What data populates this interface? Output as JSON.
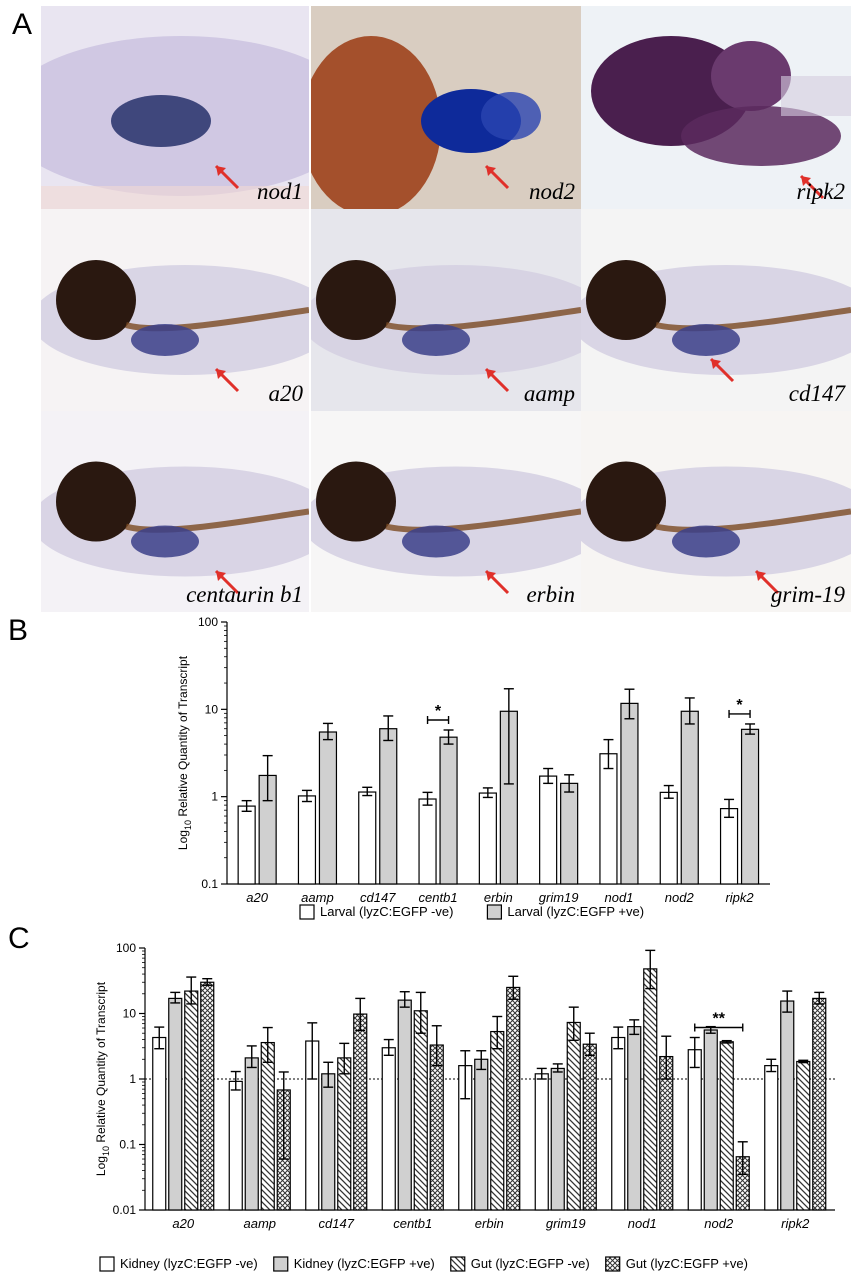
{
  "panels": {
    "a": "A",
    "b": "B",
    "c": "C"
  },
  "images": [
    {
      "label": "nod1",
      "bg": "#e9e5f1",
      "arrow": "#e0302a"
    },
    {
      "label": "nod2",
      "bg": "#e2d9d2",
      "arrow": "#e0302a"
    },
    {
      "label": "ripk2",
      "bg": "#eef2f6",
      "arrow": "#e0302a"
    },
    {
      "label": "a20",
      "bg": "#f6f3f4",
      "arrow": "#e0302a"
    },
    {
      "label": "aamp",
      "bg": "#e6e6ec",
      "arrow": "#e0302a"
    },
    {
      "label": "cd147",
      "bg": "#f4f4f4",
      "arrow": "#e0302a"
    },
    {
      "label": "centaurin b1",
      "bg": "#f4f2f6",
      "arrow": "#e0302a"
    },
    {
      "label": "erbin",
      "bg": "#f7f6f6",
      "arrow": "#e0302a"
    },
    {
      "label": "grim-19",
      "bg": "#f7f5f3",
      "arrow": "#e0302a"
    }
  ],
  "chart_data": [
    {
      "type": "bar",
      "ylabel": "Log10 Relative Quantity of Transcript",
      "yscale": "log",
      "ylim": [
        0.1,
        100
      ],
      "yticks": [
        "0.1",
        "1",
        "10",
        "100"
      ],
      "categories": [
        "a20",
        "aamp",
        "cd147",
        "centb1",
        "erbin",
        "grim19",
        "nod1",
        "nod2",
        "ripk2"
      ],
      "series": [
        {
          "name": "Larval (lyzC:EGFP -ve)",
          "fill": "white",
          "values": [
            0.78,
            1.02,
            1.13,
            0.94,
            1.1,
            1.72,
            3.1,
            1.12,
            0.73
          ],
          "err_low": [
            0.68,
            0.88,
            1.03,
            0.8,
            0.98,
            1.42,
            2.1,
            0.96,
            0.58
          ],
          "err_high": [
            0.9,
            1.18,
            1.28,
            1.12,
            1.26,
            2.1,
            4.5,
            1.34,
            0.93
          ]
        },
        {
          "name": "Larval (lyzC:EGFP +ve)",
          "fill": "gray",
          "values": [
            1.75,
            5.5,
            6.0,
            4.8,
            9.5,
            1.42,
            11.7,
            9.5,
            5.9
          ],
          "err_low": [
            0.9,
            4.5,
            4.4,
            4.0,
            1.4,
            1.13,
            7.8,
            6.8,
            5.2
          ],
          "err_high": [
            2.95,
            6.9,
            8.4,
            5.8,
            17.2,
            1.78,
            17.0,
            13.5,
            6.8
          ]
        }
      ],
      "significance": [
        {
          "category": "centb1",
          "label": "*"
        },
        {
          "category": "ripk2",
          "label": "*"
        }
      ],
      "legend": "bottom"
    },
    {
      "type": "bar",
      "ylabel": "Log10 Relative Quantity of Transcript",
      "yscale": "log",
      "ylim": [
        0.01,
        100
      ],
      "yticks": [
        "0.01",
        "0.1",
        "1",
        "10",
        "100"
      ],
      "reference_line": 1,
      "categories": [
        "a20",
        "aamp",
        "cd147",
        "centb1",
        "erbin",
        "grim19",
        "nod1",
        "nod2",
        "ripk2"
      ],
      "series": [
        {
          "name": "Kidney (lyzC:EGFP -ve)",
          "fill": "white",
          "values": [
            4.3,
            0.92,
            3.8,
            3.0,
            1.6,
            1.2,
            4.3,
            2.8,
            1.6
          ],
          "err_low": [
            2.9,
            0.68,
            1.0,
            2.3,
            0.5,
            1.0,
            2.9,
            1.5,
            1.3
          ],
          "err_high": [
            6.2,
            1.3,
            7.2,
            4.0,
            2.7,
            1.45,
            6.2,
            4.3,
            2.0
          ]
        },
        {
          "name": "Kidney (lyzC:EGFP +ve)",
          "fill": "gray",
          "values": [
            17.0,
            2.1,
            1.2,
            16.0,
            2.0,
            1.45,
            6.3,
            5.6,
            15.5
          ],
          "err_low": [
            14.5,
            1.5,
            0.75,
            12.5,
            1.4,
            1.28,
            4.8,
            5.0,
            10.5
          ],
          "err_high": [
            21.0,
            3.2,
            1.8,
            21.5,
            2.7,
            1.7,
            8.0,
            6.3,
            22.0
          ]
        },
        {
          "name": "Gut (lyzC:EGFP -ve)",
          "fill": "hatch",
          "values": [
            22.0,
            3.6,
            2.1,
            11.0,
            5.3,
            7.3,
            48.0,
            3.7,
            1.85
          ],
          "err_low": [
            14.0,
            1.8,
            1.2,
            5.0,
            2.9,
            3.9,
            24.0,
            3.55,
            1.78
          ],
          "err_high": [
            36.0,
            6.1,
            3.5,
            21.0,
            9.0,
            12.5,
            92.0,
            3.85,
            1.93
          ]
        },
        {
          "name": "Gut (lyzC:EGFP +ve)",
          "fill": "crosshatch",
          "values": [
            30.0,
            0.68,
            9.8,
            3.3,
            25.0,
            3.4,
            2.2,
            0.065,
            17.0
          ],
          "err_low": [
            27.0,
            0.06,
            5.5,
            1.6,
            16.5,
            2.3,
            1.0,
            0.035,
            14.0
          ],
          "err_high": [
            34.0,
            1.28,
            17.0,
            6.5,
            37.0,
            5.0,
            4.5,
            0.11,
            21.0
          ]
        }
      ],
      "significance": [
        {
          "category": "nod2",
          "label": "**"
        }
      ],
      "legend": "bottom"
    }
  ]
}
